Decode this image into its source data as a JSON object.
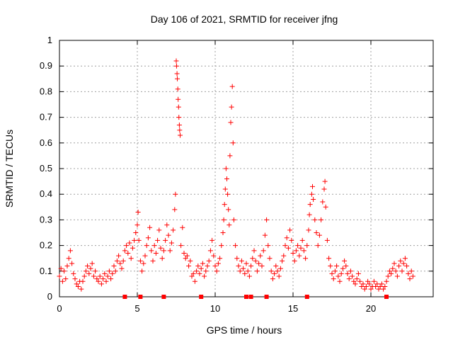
{
  "chart_data": {
    "type": "scatter",
    "title": "Day 106 of 2021, SRMTID for receiver jfng",
    "xlabel": "GPS time / hours",
    "ylabel": "SRMTID / TECUs",
    "xlim": [
      0,
      24
    ],
    "ylim": [
      0,
      1
    ],
    "xticks": [
      0,
      5,
      10,
      15,
      20
    ],
    "xtick_labels": [
      "0",
      "5",
      "10",
      "15",
      "20"
    ],
    "yticks": [
      0,
      0.1,
      0.2,
      0.3,
      0.4,
      0.5,
      0.6,
      0.7,
      0.8,
      0.9,
      1
    ],
    "ytick_labels": [
      "0",
      "0.1",
      "0.2",
      "0.3",
      "0.4",
      "0.5",
      "0.6",
      "0.7",
      "0.8",
      "0.9",
      "1"
    ],
    "grid": true,
    "marker": "+",
    "color": "#ff0000",
    "series": [
      {
        "name": "SRMTID",
        "points": [
          [
            0.0,
            0.08
          ],
          [
            0.1,
            0.11
          ],
          [
            0.2,
            0.06
          ],
          [
            0.3,
            0.1
          ],
          [
            0.4,
            0.07
          ],
          [
            0.5,
            0.12
          ],
          [
            0.6,
            0.15
          ],
          [
            0.7,
            0.18
          ],
          [
            0.8,
            0.13
          ],
          [
            0.9,
            0.09
          ],
          [
            1.0,
            0.07
          ],
          [
            1.1,
            0.05
          ],
          [
            1.2,
            0.04
          ],
          [
            1.3,
            0.06
          ],
          [
            1.4,
            0.03
          ],
          [
            1.5,
            0.06
          ],
          [
            1.6,
            0.08
          ],
          [
            1.7,
            0.1
          ],
          [
            1.8,
            0.12
          ],
          [
            1.9,
            0.09
          ],
          [
            2.0,
            0.11
          ],
          [
            2.1,
            0.13
          ],
          [
            2.2,
            0.08
          ],
          [
            2.3,
            0.1
          ],
          [
            2.4,
            0.07
          ],
          [
            2.5,
            0.06
          ],
          [
            2.6,
            0.08
          ],
          [
            2.7,
            0.05
          ],
          [
            2.8,
            0.07
          ],
          [
            2.9,
            0.09
          ],
          [
            3.0,
            0.06
          ],
          [
            3.1,
            0.08
          ],
          [
            3.2,
            0.1
          ],
          [
            3.3,
            0.07
          ],
          [
            3.4,
            0.09
          ],
          [
            3.5,
            0.12
          ],
          [
            3.6,
            0.1
          ],
          [
            3.7,
            0.14
          ],
          [
            3.8,
            0.16
          ],
          [
            3.9,
            0.13
          ],
          [
            4.0,
            0.11
          ],
          [
            4.1,
            0.14
          ],
          [
            4.2,
            0.18
          ],
          [
            4.3,
            0.2
          ],
          [
            4.4,
            0.17
          ],
          [
            4.5,
            0.21
          ],
          [
            4.6,
            0.15
          ],
          [
            4.7,
            0.19
          ],
          [
            4.8,
            0.22
          ],
          [
            4.9,
            0.25
          ],
          [
            5.0,
            0.28
          ],
          [
            5.05,
            0.33
          ],
          [
            5.1,
            0.22
          ],
          [
            5.2,
            0.14
          ],
          [
            5.3,
            0.1
          ],
          [
            5.4,
            0.13
          ],
          [
            5.5,
            0.16
          ],
          [
            5.6,
            0.2
          ],
          [
            5.7,
            0.23
          ],
          [
            5.8,
            0.27
          ],
          [
            5.9,
            0.18
          ],
          [
            6.0,
            0.14
          ],
          [
            6.1,
            0.2
          ],
          [
            6.2,
            0.17
          ],
          [
            6.3,
            0.22
          ],
          [
            6.4,
            0.26
          ],
          [
            6.5,
            0.19
          ],
          [
            6.6,
            0.15
          ],
          [
            6.7,
            0.18
          ],
          [
            6.8,
            0.22
          ],
          [
            6.9,
            0.28
          ],
          [
            7.0,
            0.24
          ],
          [
            7.1,
            0.18
          ],
          [
            7.2,
            0.21
          ],
          [
            7.3,
            0.26
          ],
          [
            7.4,
            0.34
          ],
          [
            7.45,
            0.4
          ],
          [
            7.5,
            0.92
          ],
          [
            7.52,
            0.9
          ],
          [
            7.55,
            0.87
          ],
          [
            7.57,
            0.85
          ],
          [
            7.6,
            0.81
          ],
          [
            7.62,
            0.77
          ],
          [
            7.65,
            0.74
          ],
          [
            7.67,
            0.7
          ],
          [
            7.7,
            0.67
          ],
          [
            7.72,
            0.65
          ],
          [
            7.75,
            0.63
          ],
          [
            7.8,
            0.2
          ],
          [
            7.9,
            0.27
          ],
          [
            8.0,
            0.17
          ],
          [
            8.1,
            0.15
          ],
          [
            8.2,
            0.16
          ],
          [
            8.3,
            0.12
          ],
          [
            8.4,
            0.14
          ],
          [
            8.5,
            0.08
          ],
          [
            8.6,
            0.09
          ],
          [
            8.7,
            0.06
          ],
          [
            8.8,
            0.1
          ],
          [
            8.9,
            0.12
          ],
          [
            9.0,
            0.09
          ],
          [
            9.1,
            0.11
          ],
          [
            9.2,
            0.13
          ],
          [
            9.3,
            0.08
          ],
          [
            9.4,
            0.1
          ],
          [
            9.5,
            0.12
          ],
          [
            9.6,
            0.14
          ],
          [
            9.7,
            0.18
          ],
          [
            9.8,
            0.22
          ],
          [
            9.9,
            0.16
          ],
          [
            10.0,
            0.12
          ],
          [
            10.1,
            0.1
          ],
          [
            10.2,
            0.13
          ],
          [
            10.3,
            0.15
          ],
          [
            10.4,
            0.2
          ],
          [
            10.5,
            0.25
          ],
          [
            10.55,
            0.3
          ],
          [
            10.6,
            0.36
          ],
          [
            10.65,
            0.42
          ],
          [
            10.7,
            0.5
          ],
          [
            10.75,
            0.46
          ],
          [
            10.8,
            0.4
          ],
          [
            10.85,
            0.34
          ],
          [
            10.9,
            0.28
          ],
          [
            10.95,
            0.55
          ],
          [
            11.0,
            0.68
          ],
          [
            11.05,
            0.74
          ],
          [
            11.1,
            0.82
          ],
          [
            11.15,
            0.6
          ],
          [
            11.2,
            0.3
          ],
          [
            11.3,
            0.2
          ],
          [
            11.4,
            0.15
          ],
          [
            11.5,
            0.12
          ],
          [
            11.6,
            0.1
          ],
          [
            11.7,
            0.14
          ],
          [
            11.8,
            0.11
          ],
          [
            11.9,
            0.09
          ],
          [
            12.0,
            0.13
          ],
          [
            12.1,
            0.1
          ],
          [
            12.2,
            0.08
          ],
          [
            12.3,
            0.12
          ],
          [
            12.4,
            0.15
          ],
          [
            12.5,
            0.18
          ],
          [
            12.6,
            0.14
          ],
          [
            12.7,
            0.1
          ],
          [
            12.8,
            0.13
          ],
          [
            12.9,
            0.16
          ],
          [
            13.0,
            0.12
          ],
          [
            13.1,
            0.18
          ],
          [
            13.2,
            0.24
          ],
          [
            13.3,
            0.3
          ],
          [
            13.4,
            0.2
          ],
          [
            13.5,
            0.15
          ],
          [
            13.6,
            0.1
          ],
          [
            13.7,
            0.07
          ],
          [
            13.8,
            0.09
          ],
          [
            13.9,
            0.12
          ],
          [
            14.0,
            0.1
          ],
          [
            14.1,
            0.08
          ],
          [
            14.2,
            0.11
          ],
          [
            14.3,
            0.14
          ],
          [
            14.4,
            0.16
          ],
          [
            14.5,
            0.2
          ],
          [
            14.6,
            0.23
          ],
          [
            14.7,
            0.19
          ],
          [
            14.8,
            0.26
          ],
          [
            14.9,
            0.22
          ],
          [
            15.0,
            0.17
          ],
          [
            15.1,
            0.14
          ],
          [
            15.2,
            0.18
          ],
          [
            15.3,
            0.2
          ],
          [
            15.4,
            0.16
          ],
          [
            15.5,
            0.19
          ],
          [
            15.6,
            0.22
          ],
          [
            15.7,
            0.18
          ],
          [
            15.8,
            0.15
          ],
          [
            15.9,
            0.2
          ],
          [
            16.0,
            0.26
          ],
          [
            16.05,
            0.32
          ],
          [
            16.1,
            0.36
          ],
          [
            16.2,
            0.4
          ],
          [
            16.25,
            0.43
          ],
          [
            16.3,
            0.38
          ],
          [
            16.4,
            0.3
          ],
          [
            16.5,
            0.25
          ],
          [
            16.6,
            0.2
          ],
          [
            16.7,
            0.24
          ],
          [
            16.8,
            0.3
          ],
          [
            16.9,
            0.37
          ],
          [
            17.0,
            0.42
          ],
          [
            17.05,
            0.45
          ],
          [
            17.1,
            0.35
          ],
          [
            17.2,
            0.22
          ],
          [
            17.3,
            0.15
          ],
          [
            17.4,
            0.12
          ],
          [
            17.5,
            0.09
          ],
          [
            17.6,
            0.07
          ],
          [
            17.7,
            0.1
          ],
          [
            17.8,
            0.12
          ],
          [
            17.9,
            0.08
          ],
          [
            18.0,
            0.06
          ],
          [
            18.1,
            0.09
          ],
          [
            18.2,
            0.11
          ],
          [
            18.3,
            0.14
          ],
          [
            18.4,
            0.12
          ],
          [
            18.5,
            0.09
          ],
          [
            18.6,
            0.07
          ],
          [
            18.7,
            0.1
          ],
          [
            18.8,
            0.08
          ],
          [
            18.9,
            0.06
          ],
          [
            19.0,
            0.05
          ],
          [
            19.1,
            0.07
          ],
          [
            19.2,
            0.09
          ],
          [
            19.3,
            0.06
          ],
          [
            19.4,
            0.04
          ],
          [
            19.5,
            0.05
          ],
          [
            19.6,
            0.03
          ],
          [
            19.7,
            0.04
          ],
          [
            19.8,
            0.06
          ],
          [
            19.9,
            0.05
          ],
          [
            20.0,
            0.03
          ],
          [
            20.1,
            0.04
          ],
          [
            20.2,
            0.06
          ],
          [
            20.3,
            0.04
          ],
          [
            20.4,
            0.05
          ],
          [
            20.5,
            0.03
          ],
          [
            20.6,
            0.04
          ],
          [
            20.7,
            0.05
          ],
          [
            20.8,
            0.03
          ],
          [
            20.9,
            0.04
          ],
          [
            21.0,
            0.06
          ],
          [
            21.1,
            0.08
          ],
          [
            21.2,
            0.1
          ],
          [
            21.3,
            0.09
          ],
          [
            21.4,
            0.11
          ],
          [
            21.5,
            0.13
          ],
          [
            21.6,
            0.1
          ],
          [
            21.7,
            0.08
          ],
          [
            21.8,
            0.12
          ],
          [
            21.9,
            0.14
          ],
          [
            22.0,
            0.1
          ],
          [
            22.1,
            0.13
          ],
          [
            22.2,
            0.15
          ],
          [
            22.3,
            0.12
          ],
          [
            22.4,
            0.09
          ],
          [
            22.5,
            0.07
          ],
          [
            22.6,
            0.1
          ],
          [
            22.7,
            0.08
          ]
        ]
      }
    ],
    "gap_markers_x": [
      4.2,
      5.2,
      6.7,
      9.1,
      12.0,
      12.3,
      13.3,
      15.9,
      21.0
    ]
  }
}
